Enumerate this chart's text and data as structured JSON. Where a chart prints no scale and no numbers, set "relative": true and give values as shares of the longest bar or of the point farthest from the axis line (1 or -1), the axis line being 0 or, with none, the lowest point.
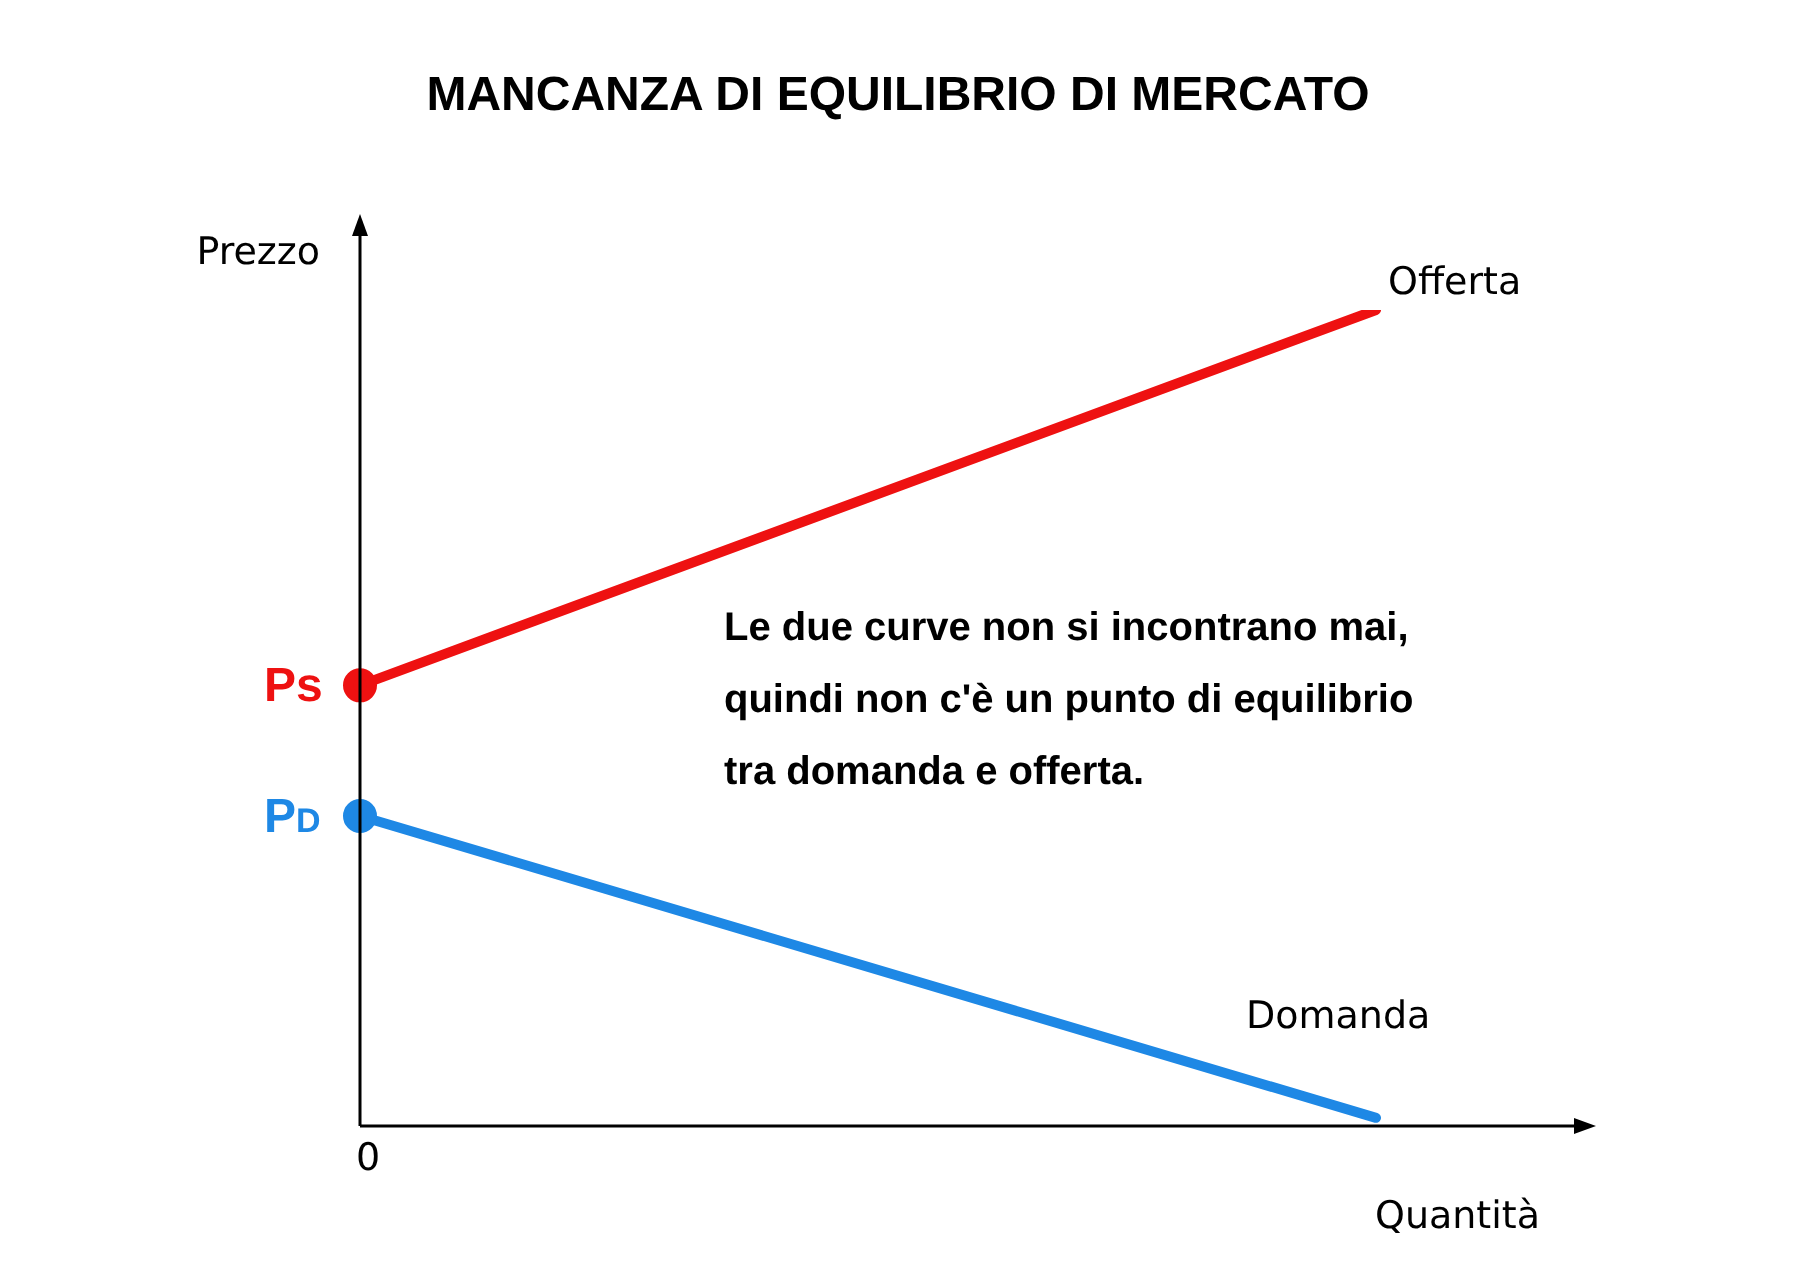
{
  "chart_data": {
    "type": "line",
    "title": "MANCANZA DI EQUILIBRIO DI MERCATO",
    "xlabel": "Quantità",
    "ylabel": "Prezzo",
    "relative": true,
    "categories": [
      null,
      null
    ],
    "marker": "circle",
    "legend": false,
    "series": [
      {
        "name": "Offerta",
        "color": "#ee1111",
        "values": [
          0.54,
          1
        ]
      },
      {
        "name": "Domanda",
        "color": "#1e88e5",
        "values": [
          0.38,
          0.01
        ]
      }
    ],
    "annotations": [
      "Le due curve non si incontrano mai,\nquindi non c'è un punto di equilibrio\ntra domanda e offerta.",
      "0",
      "Ps",
      "P$_{D}$"
    ]
  }
}
